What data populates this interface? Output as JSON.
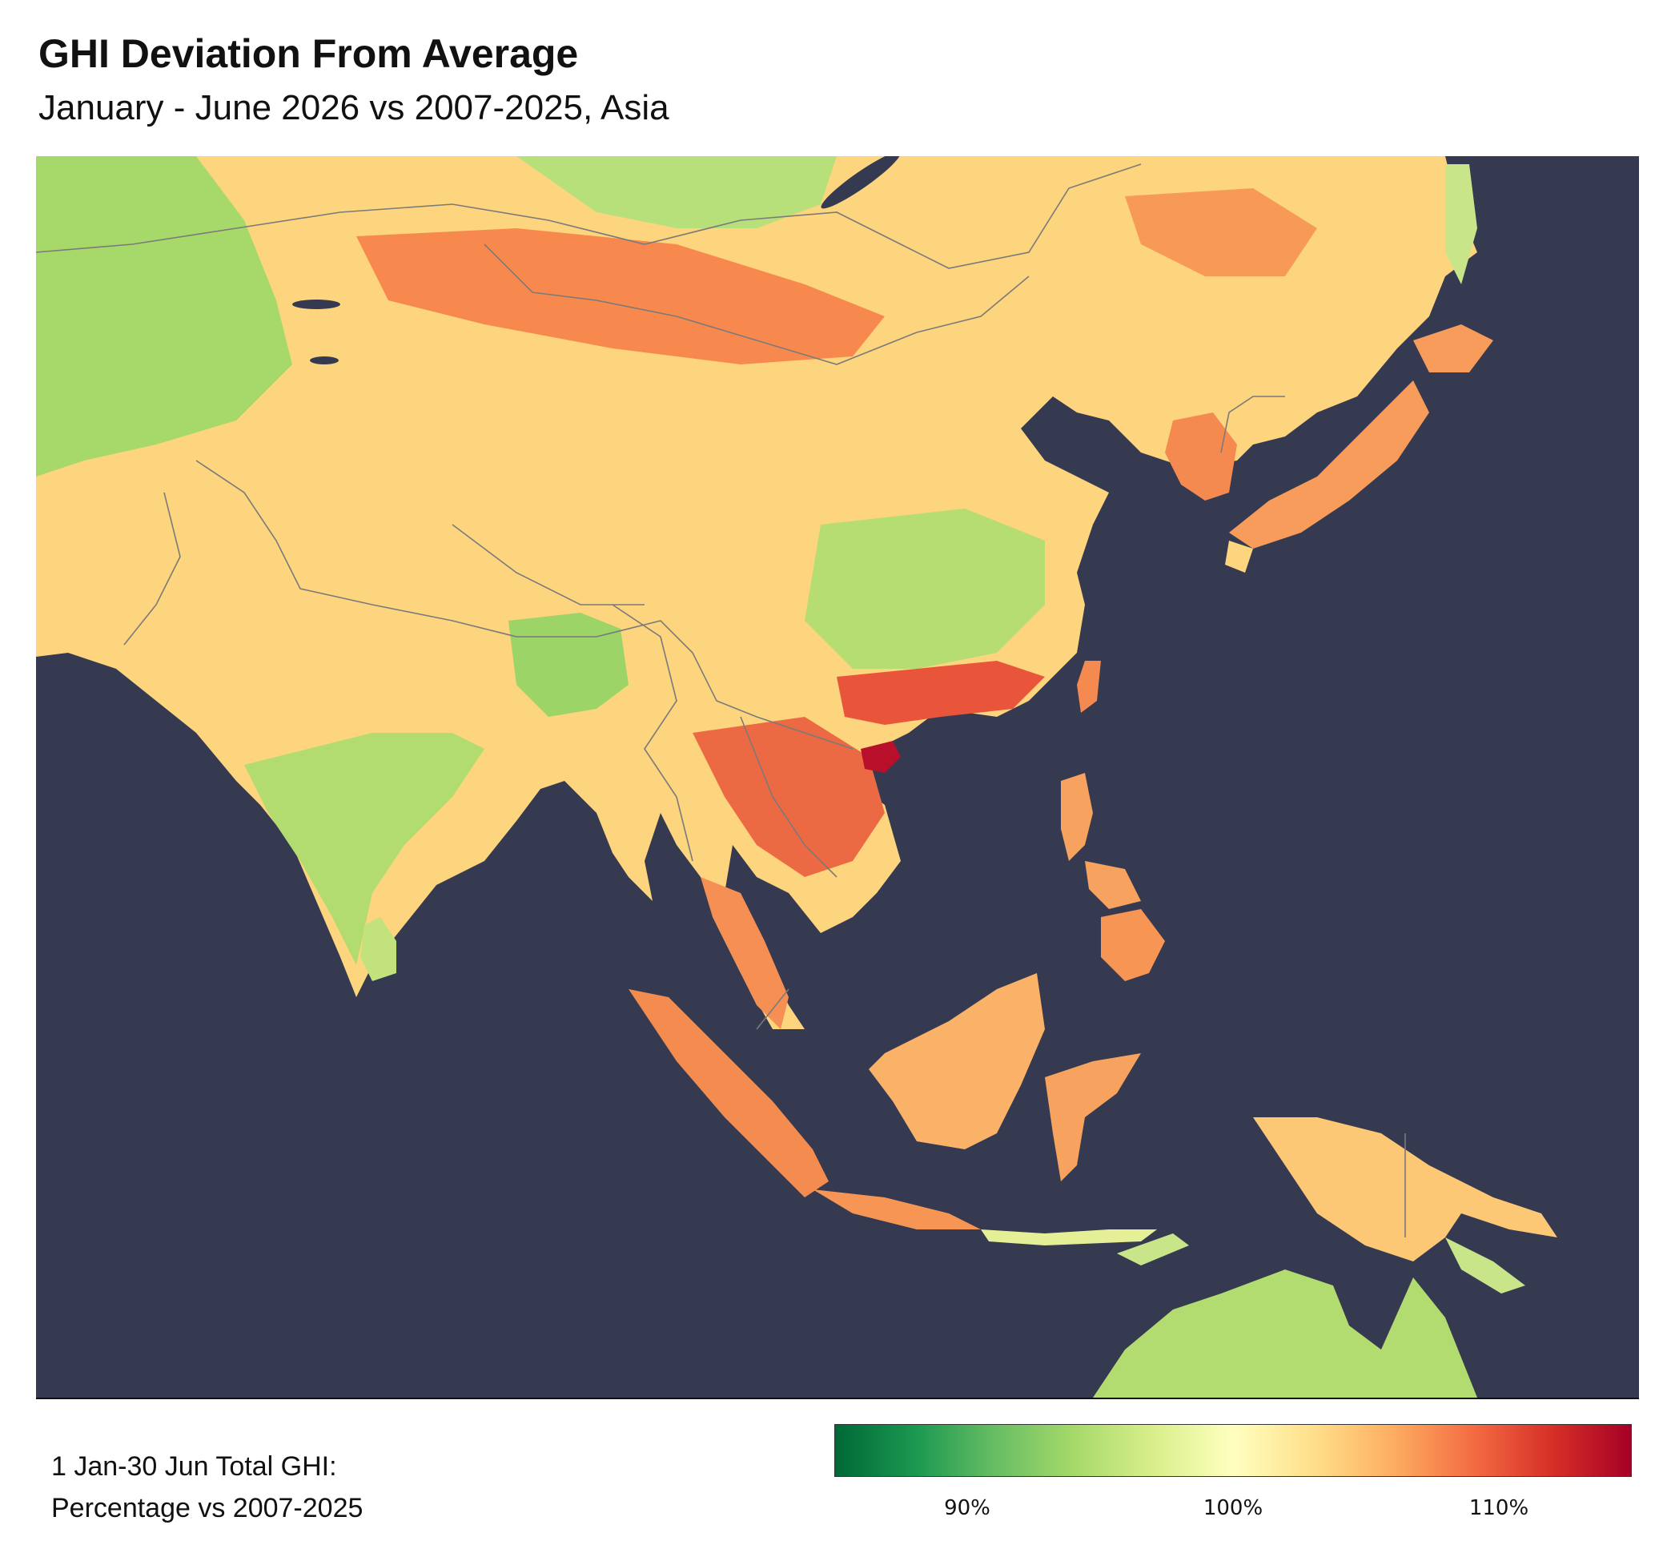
{
  "title": "GHI Deviation From Average",
  "subtitle": "January - June 2026 vs 2007-2025, Asia",
  "legend": {
    "label_line1": "1 Jan-30 Jun Total GHI:",
    "label_line2": "Percentage vs 2007-2025",
    "min": 85,
    "max": 115,
    "ticks": [
      "90%",
      "100%",
      "110%"
    ],
    "colors": [
      "#006837",
      "#1a9850",
      "#66bd63",
      "#a6d96a",
      "#d9ef8b",
      "#ffffbf",
      "#fee08b",
      "#fdae61",
      "#f46d43",
      "#d73027",
      "#a50026"
    ]
  },
  "map": {
    "ocean_color": "#363a51",
    "border_color": "#7a7a7a"
  }
}
